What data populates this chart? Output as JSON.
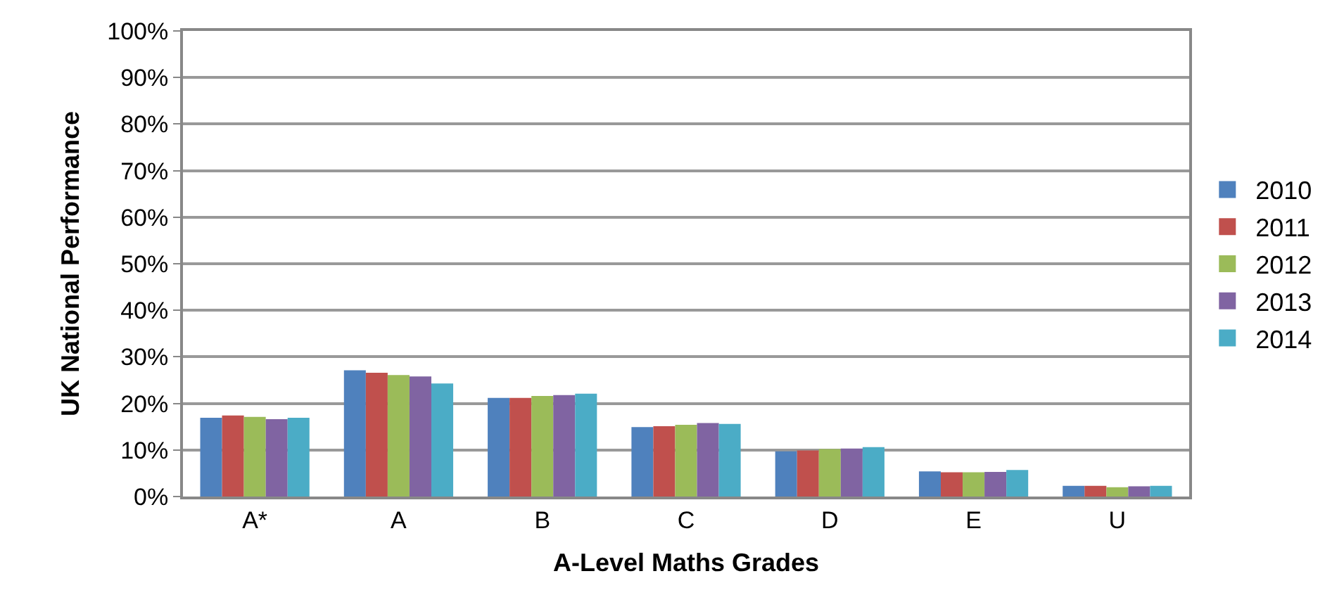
{
  "chart_data": {
    "type": "bar",
    "xlabel": "A-Level Maths Grades",
    "ylabel": "UK National Performance",
    "categories": [
      "A*",
      "A",
      "B",
      "C",
      "D",
      "E",
      "U"
    ],
    "series": [
      {
        "name": "2010",
        "color": "#4f81bd",
        "values": [
          16.9,
          27.1,
          21.2,
          14.9,
          9.7,
          5.4,
          2.3
        ]
      },
      {
        "name": "2011",
        "color": "#c0504d",
        "values": [
          17.4,
          26.6,
          21.2,
          15.1,
          9.9,
          5.2,
          2.3
        ]
      },
      {
        "name": "2012",
        "color": "#9bbb59",
        "values": [
          17.1,
          26.1,
          21.6,
          15.4,
          10.2,
          5.2,
          2.0
        ]
      },
      {
        "name": "2013",
        "color": "#8064a2",
        "values": [
          16.6,
          25.8,
          21.8,
          15.8,
          10.3,
          5.3,
          2.2
        ]
      },
      {
        "name": "2014",
        "color": "#4bacc6",
        "values": [
          16.9,
          24.3,
          22.1,
          15.6,
          10.6,
          5.7,
          2.3
        ]
      }
    ],
    "ylim": [
      0,
      100
    ],
    "yticks": [
      {
        "value": 0,
        "label": "0%"
      },
      {
        "value": 10,
        "label": "10%"
      },
      {
        "value": 20,
        "label": "20%"
      },
      {
        "value": 30,
        "label": "30%"
      },
      {
        "value": 40,
        "label": "40%"
      },
      {
        "value": 50,
        "label": "50%"
      },
      {
        "value": 60,
        "label": "60%"
      },
      {
        "value": 70,
        "label": "70%"
      },
      {
        "value": 80,
        "label": "80%"
      },
      {
        "value": 90,
        "label": "90%"
      },
      {
        "value": 100,
        "label": "100%"
      }
    ],
    "grid": "y",
    "legend": "right"
  }
}
